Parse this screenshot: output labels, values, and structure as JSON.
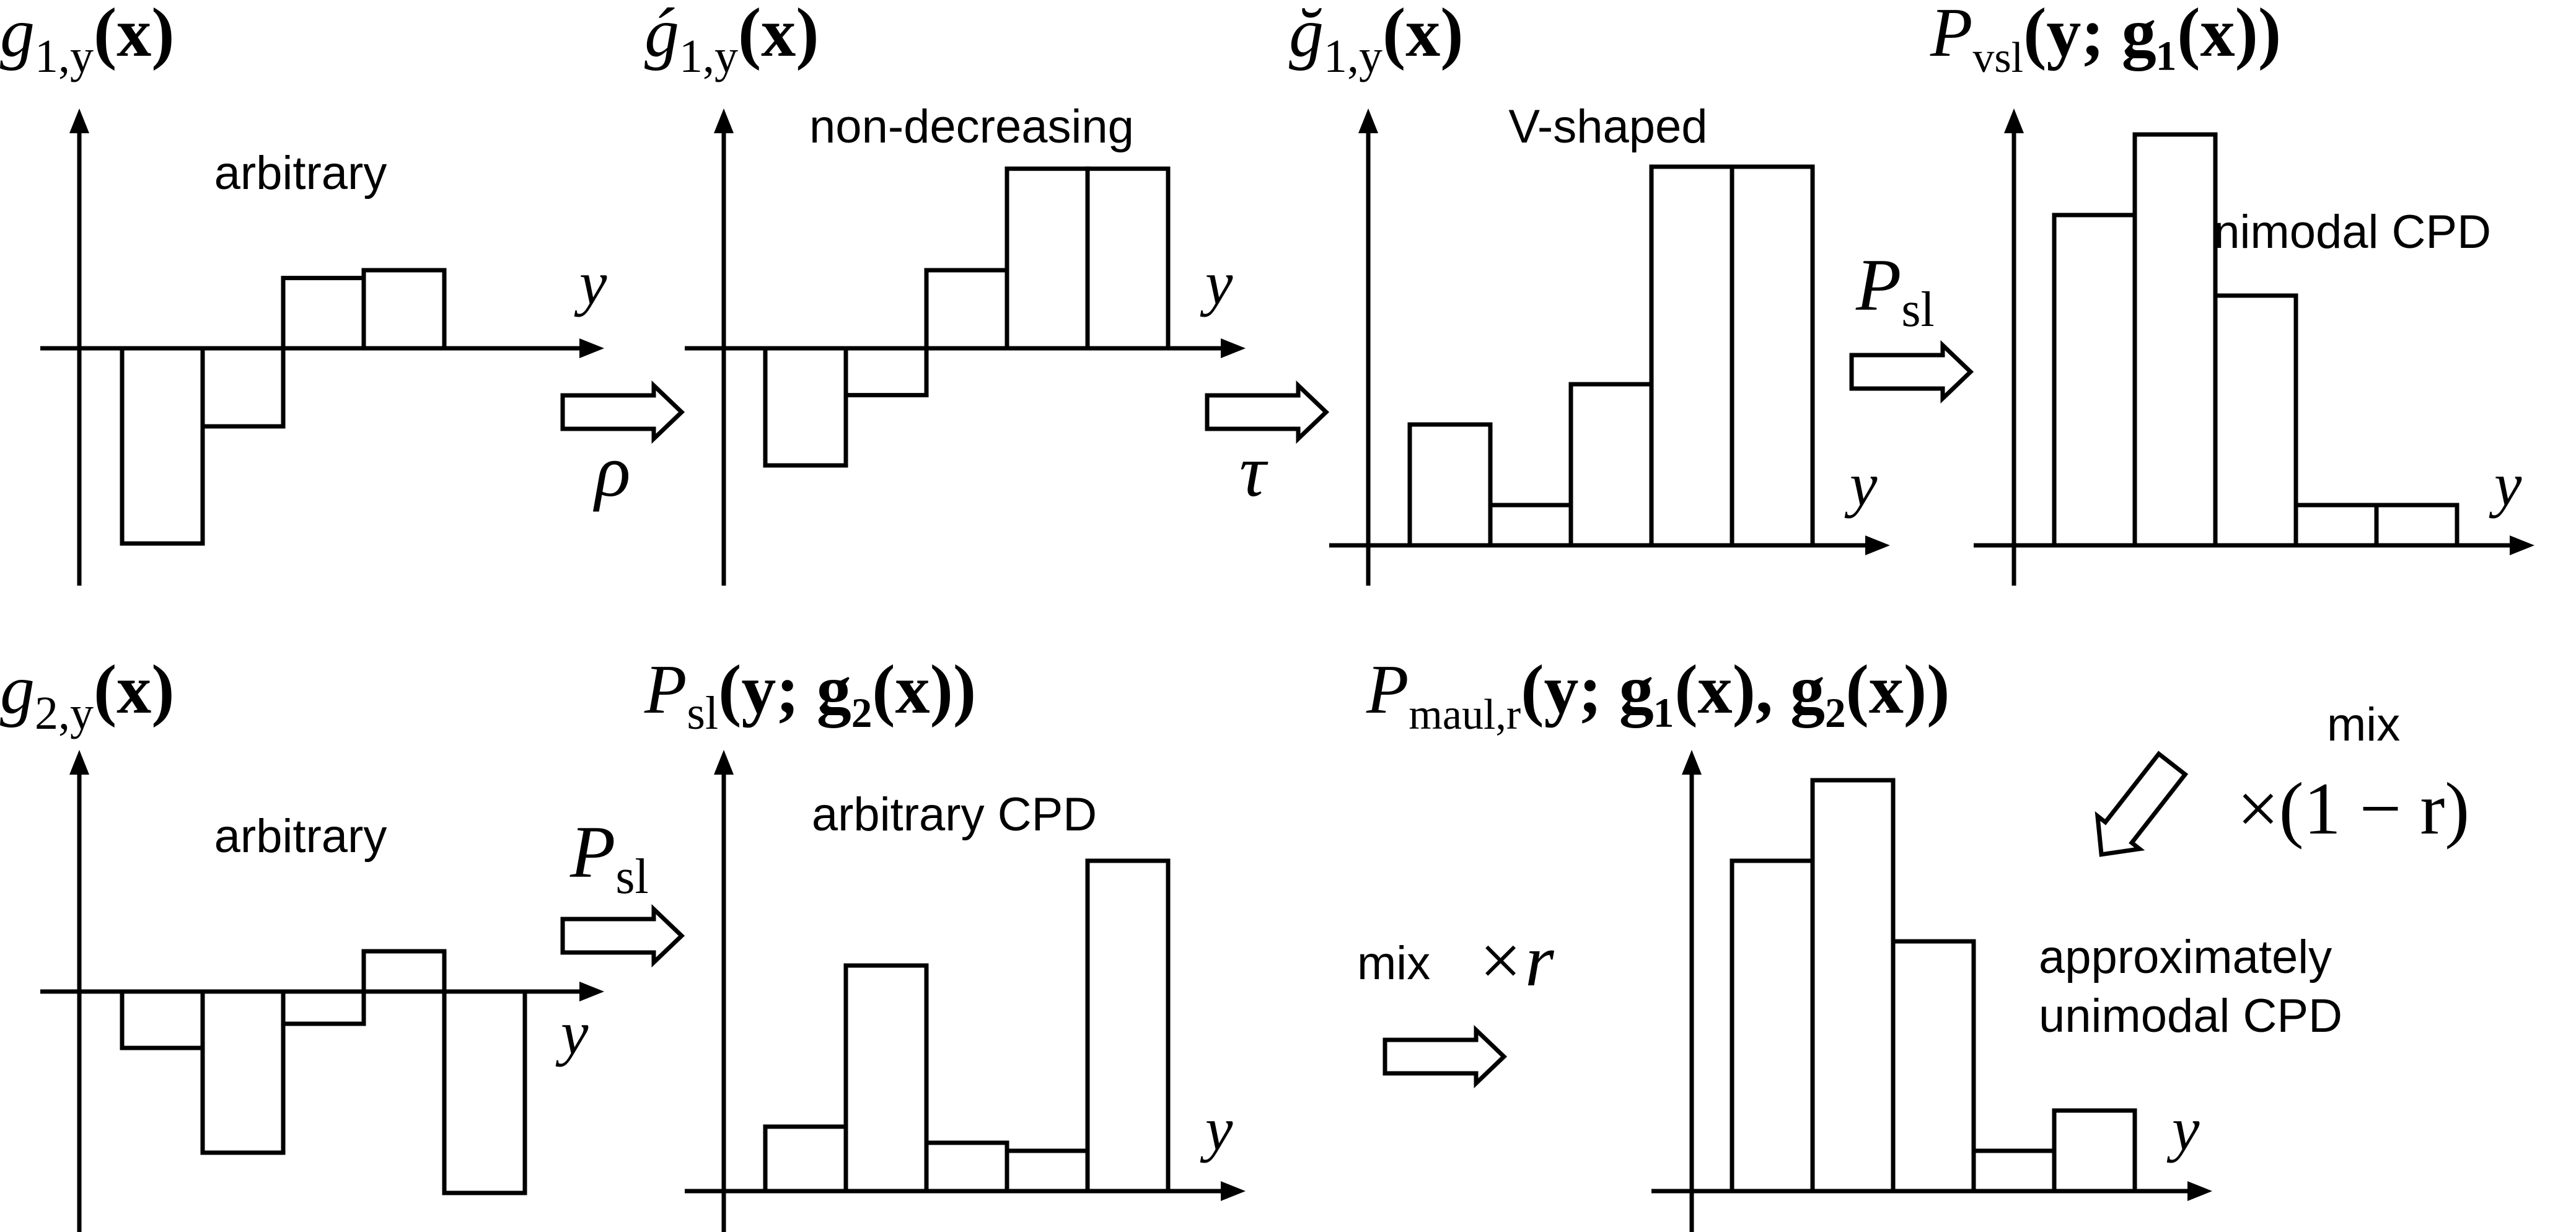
{
  "colors": {
    "ink": "#000000",
    "fill": "#ffffff"
  },
  "panels": [
    {
      "id": "g1",
      "kind": "signed",
      "values": [
        -2.5,
        -1,
        0.9,
        1.0,
        0
      ],
      "annotation": "arbitrary",
      "title": {
        "base": "g",
        "sub": "1,y",
        "rest": "(x)"
      },
      "axis_label": "y"
    },
    {
      "id": "g1-acute",
      "kind": "signed",
      "values": [
        -1.5,
        -0.6,
        1.0,
        2.3,
        2.3
      ],
      "annotation": "non-decreasing",
      "title": {
        "base": "ǵ",
        "sub": "1,y",
        "rest": "(x)"
      },
      "axis_label": "y"
    },
    {
      "id": "g1-check",
      "kind": "positive",
      "values": [
        1.5,
        0.5,
        2.0,
        4.7,
        4.7
      ],
      "annotation": "V-shaped",
      "title": {
        "base": "ğ",
        "sub": "1,y",
        "rest": "(x)"
      },
      "axis_label": "y"
    },
    {
      "id": "p-vsl",
      "kind": "positive",
      "values": [
        4.1,
        5.1,
        3.1,
        0.5,
        0.5
      ],
      "annotation": "unimodal CPD",
      "title": {
        "base": "P",
        "sub": "vsl",
        "rest": "(y; g₁(x))"
      },
      "axis_label": "y"
    },
    {
      "id": "g2",
      "kind": "signed",
      "values": [
        -0.7,
        -2.0,
        -0.4,
        0.5,
        -2.5
      ],
      "annotation": "arbitrary",
      "title": {
        "base": "g",
        "sub": "2,y",
        "rest": "(x)"
      },
      "axis_label": "y"
    },
    {
      "id": "p-sl-g2",
      "kind": "positive",
      "values": [
        0.8,
        2.8,
        0.6,
        0.5,
        4.1
      ],
      "annotation": "arbitrary CPD",
      "title": {
        "base": "P",
        "sub": "sl",
        "rest": "(y; g₂(x))"
      },
      "axis_label": "y"
    },
    {
      "id": "p-maul",
      "kind": "positive",
      "values": [
        4.1,
        5.1,
        3.1,
        0.5,
        1.0
      ],
      "annotation": "approximately\nunimodal CPD",
      "title": {
        "base": "P",
        "sub": "maul,r",
        "rest": "(y; g₁(x), g₂(x))"
      },
      "axis_label": "y"
    }
  ],
  "transitions": [
    {
      "id": "rho",
      "label": "ρ"
    },
    {
      "id": "tau",
      "label": "τ"
    },
    {
      "id": "psl-top",
      "label_base": "P",
      "label_sub": "sl"
    },
    {
      "id": "psl-bottom",
      "label_base": "P",
      "label_sub": "sl"
    },
    {
      "id": "mix-r",
      "word": "mix",
      "factor": "×r"
    },
    {
      "id": "mix-1-r",
      "word": "mix",
      "factor": "×(1 − r)"
    }
  ]
}
